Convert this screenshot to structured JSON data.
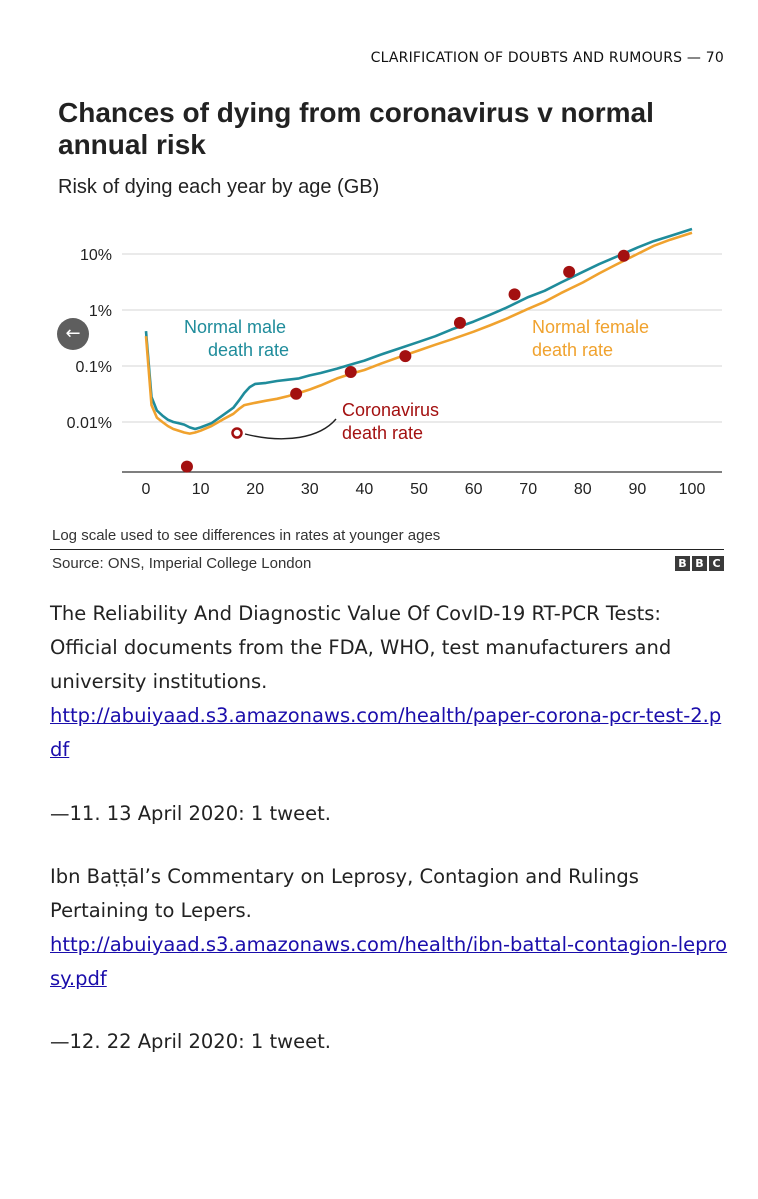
{
  "running_head": "CLARIFICATION OF DOUBTS AND RUMOURS  — 70",
  "chart_data": {
    "type": "line",
    "title": "Chances of dying from coronavirus v normal annual risk",
    "subtitle": "Risk of dying each year by age (GB)",
    "xlabel": "",
    "ylabel": "",
    "x_ticks": [
      0,
      10,
      20,
      30,
      40,
      50,
      60,
      70,
      80,
      90,
      100
    ],
    "y_ticks": [
      {
        "value": 0.0001,
        "label": "0.01%"
      },
      {
        "value": 0.001,
        "label": "0.1%"
      },
      {
        "value": 0.01,
        "label": "1%"
      },
      {
        "value": 0.1,
        "label": "10%"
      }
    ],
    "xlim": [
      0,
      100
    ],
    "ylim_log10": [
      -4.9,
      -0.45
    ],
    "y_scale": "log",
    "grid": "horizontal",
    "series": [
      {
        "name": "Normal male death rate",
        "color": "#1f8c9b",
        "x": [
          0,
          1,
          2,
          3,
          4,
          5,
          6,
          7,
          8,
          9,
          10,
          12,
          14,
          16,
          17,
          18,
          19,
          20,
          22,
          24,
          26,
          28,
          30,
          32,
          35,
          38,
          40,
          43,
          46,
          50,
          53,
          56,
          60,
          63,
          66,
          70,
          73,
          76,
          80,
          83,
          86,
          90,
          93,
          96,
          100
        ],
        "y": [
          0.0042,
          0.00028,
          0.00016,
          0.00013,
          0.00011,
          0.0001,
          9.5e-05,
          9e-05,
          8e-05,
          7.5e-05,
          8e-05,
          9.5e-05,
          0.00013,
          0.00018,
          0.00024,
          0.00033,
          0.00042,
          0.00048,
          0.0005,
          0.00054,
          0.00057,
          0.0006,
          0.00068,
          0.00075,
          0.0009,
          0.0011,
          0.00125,
          0.0016,
          0.002,
          0.0027,
          0.0034,
          0.0045,
          0.0062,
          0.0082,
          0.011,
          0.017,
          0.022,
          0.031,
          0.048,
          0.066,
          0.088,
          0.13,
          0.17,
          0.21,
          0.28
        ]
      },
      {
        "name": "Normal female death rate",
        "color": "#f0a22e",
        "x": [
          0,
          1,
          2,
          3,
          4,
          5,
          6,
          7,
          8,
          9,
          10,
          12,
          14,
          16,
          17,
          18,
          20,
          22,
          24,
          26,
          28,
          30,
          32,
          35,
          38,
          40,
          43,
          46,
          50,
          53,
          56,
          60,
          63,
          66,
          70,
          73,
          76,
          80,
          83,
          86,
          90,
          93,
          96,
          100
        ],
        "y": [
          0.0034,
          0.0002,
          0.00012,
          0.0001,
          8.5e-05,
          7.5e-05,
          7e-05,
          6.5e-05,
          6.2e-05,
          6.5e-05,
          7e-05,
          8.5e-05,
          0.00011,
          0.00014,
          0.00017,
          0.0002,
          0.00022,
          0.00024,
          0.00026,
          0.00029,
          0.00033,
          0.00038,
          0.00045,
          0.0006,
          0.00075,
          0.00085,
          0.0011,
          0.0014,
          0.0019,
          0.0024,
          0.003,
          0.0041,
          0.0053,
          0.007,
          0.0105,
          0.014,
          0.02,
          0.031,
          0.045,
          0.064,
          0.1,
          0.14,
          0.18,
          0.24
        ]
      },
      {
        "name": "Coronavirus death rate",
        "color": "#a31010",
        "type": "scatter",
        "x": [
          7.5,
          27.5,
          37.5,
          47.5,
          57.5,
          67.5,
          77.5,
          87.5
        ],
        "y": [
          1.6e-05,
          0.00032,
          0.00078,
          0.0015,
          0.0059,
          0.019,
          0.048,
          0.093
        ]
      }
    ],
    "labels": {
      "male": [
        "Normal male",
        "death rate"
      ],
      "female": [
        "Normal female",
        "death rate"
      ],
      "covid": [
        "Coronavirus",
        "death rate"
      ]
    },
    "note": "Log scale used to see differences in rates at younger ages",
    "source": "Source: ONS, Imperial College London",
    "brand": [
      "B",
      "B",
      "C"
    ]
  },
  "nav": {
    "back_glyph": "←"
  },
  "body": {
    "entry1_text": "The Reliability And Diagnostic Value Of CovID-19 RT-PCR Tests: Official documents from the FDA, WHO, test manufacturers and university institutions.",
    "entry1_link": "http://abuiyaad.s3.amazonaws.com/health/paper-corona-pcr-test-2.pdf",
    "entry2": "—11. 13 April 2020: 1 tweet.",
    "entry3_text": "Ibn Baṭṭāl’s Commentary on Leprosy, Contagion and Rulings Pertaining to Lepers.",
    "entry3_link": "http://abuiyaad.s3.amazonaws.com/health/ibn-battal-contagion-leprosy.pdf",
    "entry4": "—12. 22 April 2020: 1 tweet."
  }
}
